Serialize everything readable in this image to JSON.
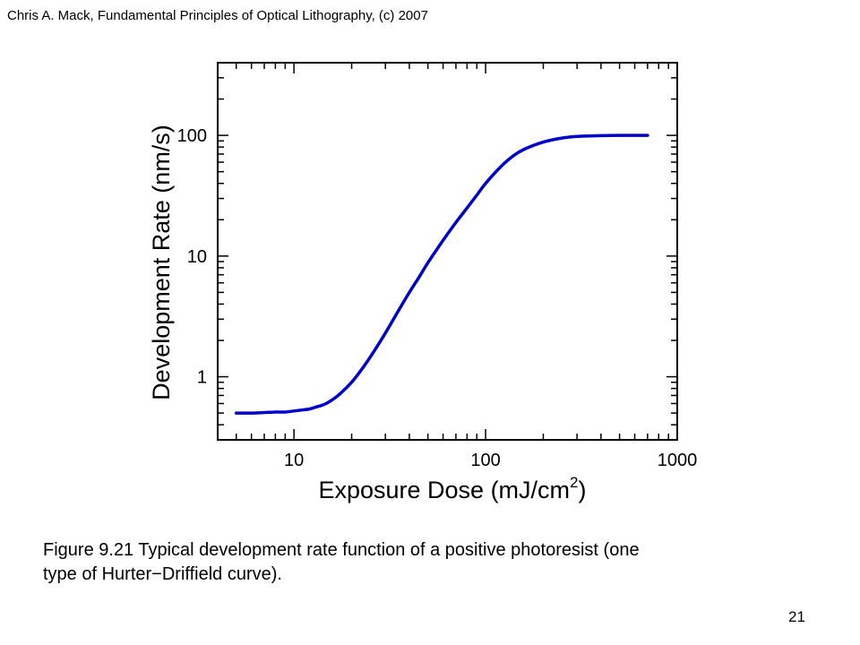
{
  "header": {
    "text": "Chris A. Mack, Fundamental Principles of Optical Lithography, (c) 2007"
  },
  "caption": {
    "line1": "Figure 9.21  Typical development rate function of a positive photoresist (one",
    "line2": "type of Hurter−Driffield curve)."
  },
  "page_number": "21",
  "chart_data": {
    "type": "line",
    "title": "",
    "xlabel": "Exposure Dose (mJ/cm",
    "xlabel_superscript": "2",
    "xlabel_suffix": ")",
    "ylabel": "Development Rate (nm/s)",
    "xscale": "log",
    "yscale": "log",
    "xlim": [
      4,
      1000
    ],
    "ylim": [
      0.3,
      400
    ],
    "xticks": [
      10,
      100,
      1000
    ],
    "xtick_labels": [
      "10",
      "100",
      "1000"
    ],
    "yticks": [
      1,
      10,
      100
    ],
    "ytick_labels": [
      "1",
      "10",
      "100"
    ],
    "grid": false,
    "legend": "none",
    "line_color": "#0000cc",
    "series": [
      {
        "x": [
          5,
          6,
          7,
          8,
          9,
          10,
          11,
          12,
          13,
          14,
          15,
          17,
          20,
          23,
          26,
          30,
          35,
          40,
          45,
          50,
          60,
          70,
          80,
          90,
          100,
          120,
          140,
          160,
          200,
          250,
          300,
          400,
          500,
          600,
          700
        ],
        "y": [
          0.5,
          0.5,
          0.505,
          0.51,
          0.51,
          0.52,
          0.53,
          0.54,
          0.56,
          0.58,
          0.61,
          0.7,
          0.9,
          1.2,
          1.6,
          2.3,
          3.5,
          5.0,
          6.7,
          8.8,
          13.5,
          19,
          25,
          32,
          40,
          55,
          68,
          77,
          88,
          95,
          98,
          99.5,
          100,
          100,
          100
        ]
      }
    ]
  }
}
